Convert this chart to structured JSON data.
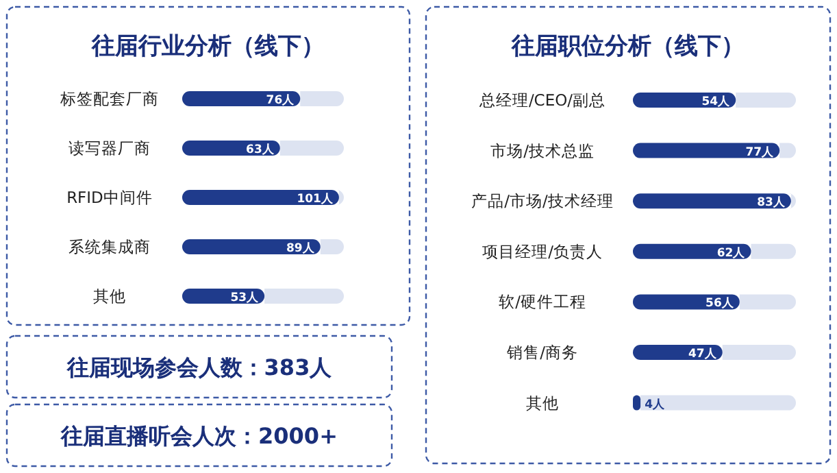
{
  "chart_data": [
    {
      "type": "bar",
      "orientation": "horizontal",
      "title": "往届行业分析（线下）",
      "categories": [
        "标签配套厂商",
        "读写器厂商",
        "RFID中间件",
        "系统集成商",
        "其他"
      ],
      "values": [
        76,
        63,
        101,
        89,
        53
      ],
      "value_labels": [
        "76人",
        "63人",
        "101人",
        "89人",
        "53人"
      ],
      "color": "#1f3b8c"
    },
    {
      "type": "bar",
      "orientation": "horizontal",
      "title": "往届职位分析（线下）",
      "categories": [
        "总经理/CEO/副总",
        "市场/技术总监",
        "产品/市场/技术经理",
        "项目经理/负责人",
        "软/硬件工程",
        "销售/商务",
        "其他"
      ],
      "values": [
        54,
        77,
        83,
        62,
        56,
        47,
        4
      ],
      "value_labels": [
        "54人",
        "77人",
        "83人",
        "62人",
        "56人",
        "47人",
        "4人"
      ],
      "color": "#1f3b8c"
    },
    {
      "type": "other",
      "title": "往届现场参会人数：383人"
    },
    {
      "type": "other",
      "title": "往届直播听会人次：2000+"
    }
  ]
}
